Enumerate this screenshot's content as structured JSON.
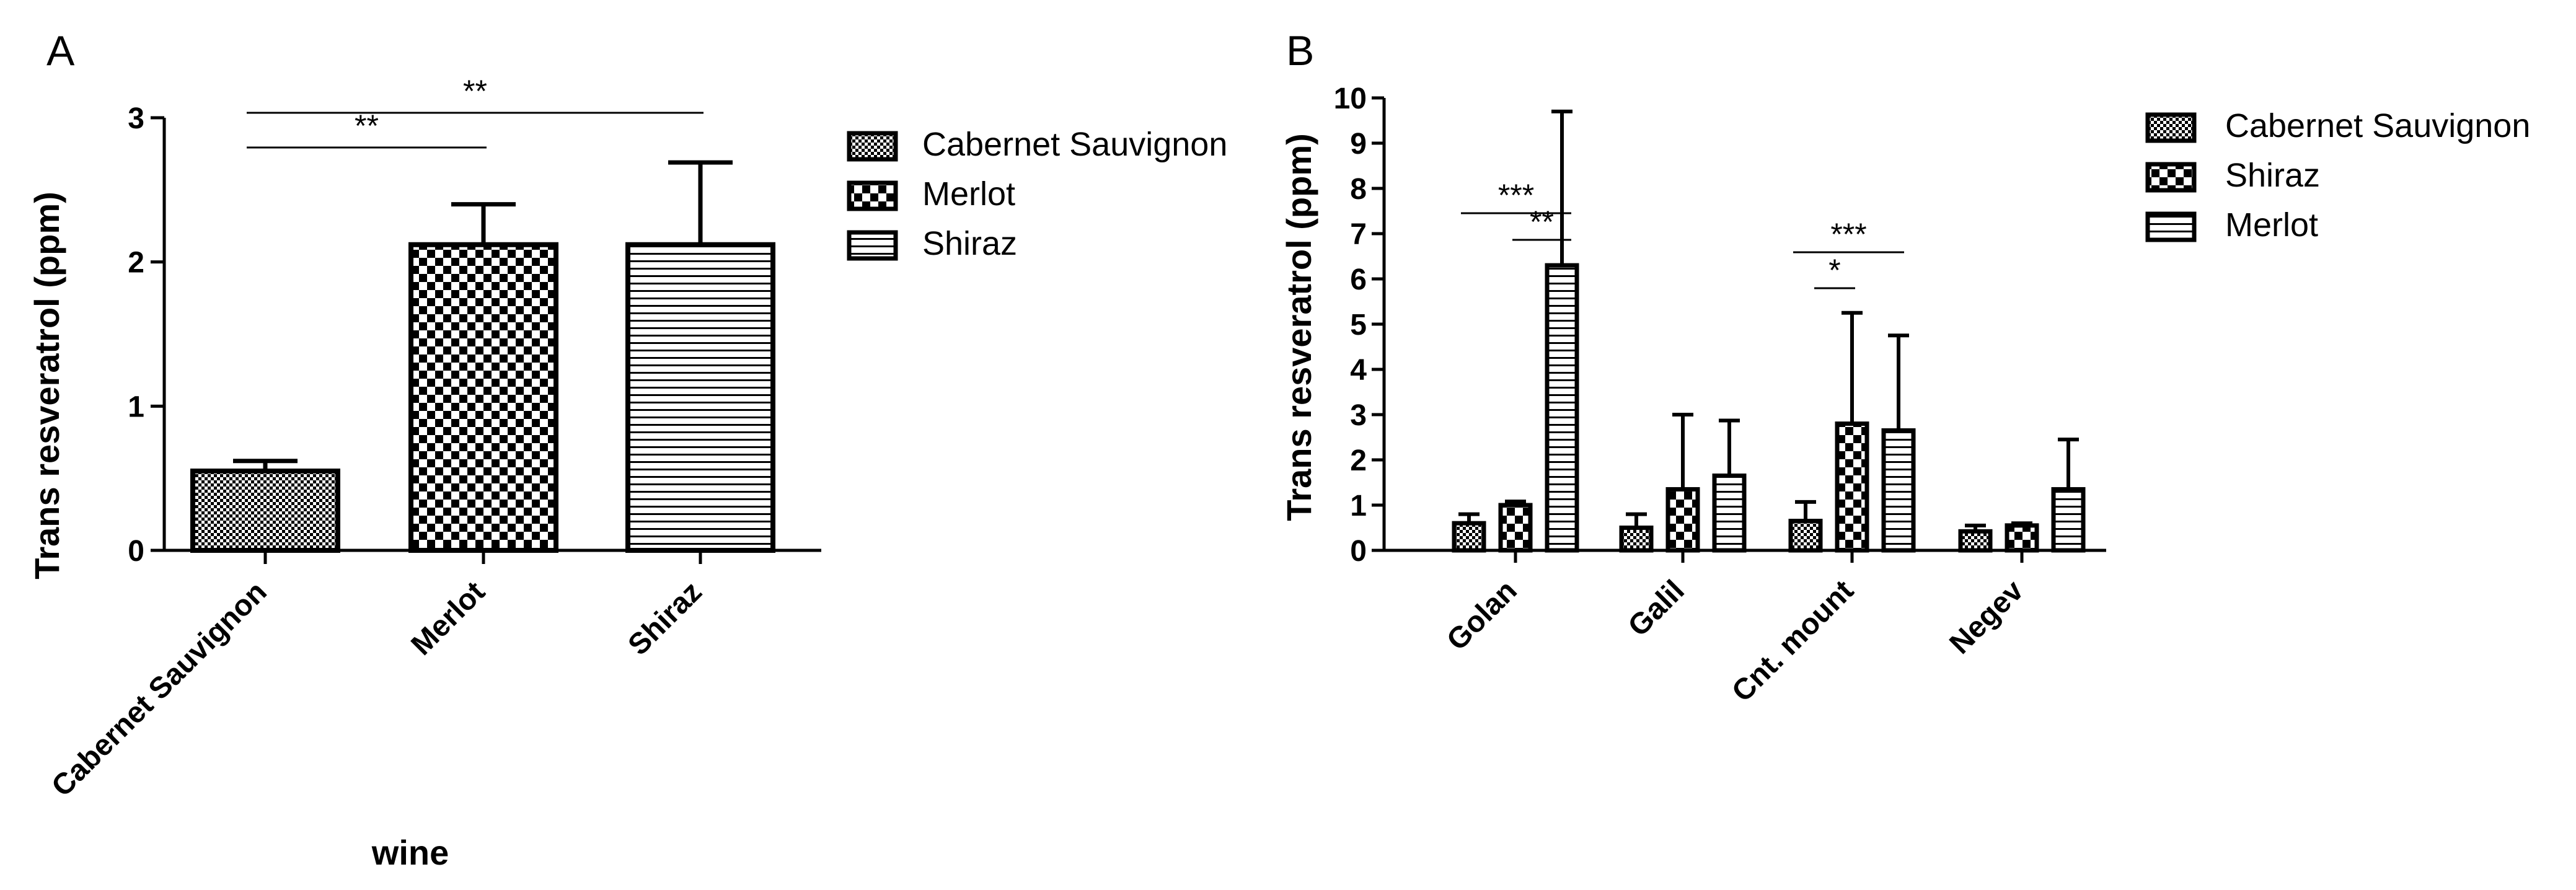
{
  "chart_data": [
    {
      "type": "bar",
      "panel": "A",
      "title": "",
      "xlabel": "wine",
      "ylabel": "Trans resveratrol (ppm)",
      "ylim": [
        0,
        3
      ],
      "yticks": [
        "0",
        "1",
        "2",
        "3"
      ],
      "categories": [
        "Cabernet Sauvignon",
        "Merlot",
        "Shiraz"
      ],
      "values": [
        0.55,
        2.12,
        2.12
      ],
      "errors": [
        0.07,
        0.28,
        0.57
      ],
      "legend": [
        "Cabernet Sauvignon",
        "Merlot",
        "Shiraz"
      ],
      "legend_position": "right",
      "significance": [
        {
          "from": 0,
          "to": 1,
          "label": "**"
        },
        {
          "from": 0,
          "to": 2,
          "label": "**"
        }
      ],
      "grid": false
    },
    {
      "type": "bar",
      "panel": "B",
      "title": "",
      "xlabel": "",
      "ylabel": "Trans resveratrol (ppm)",
      "ylim": [
        0,
        10
      ],
      "yticks": [
        "0",
        "1",
        "2",
        "3",
        "4",
        "5",
        "6",
        "7",
        "8",
        "9",
        "10"
      ],
      "categories": [
        "Golan",
        "Galil",
        "Cnt. mount",
        "Negev"
      ],
      "series": [
        {
          "name": "Cabernet Sauvignon",
          "values": [
            0.6,
            0.5,
            0.65,
            0.42
          ],
          "errors": [
            0.2,
            0.3,
            0.42,
            0.13
          ]
        },
        {
          "name": "Shiraz",
          "values": [
            1.0,
            1.35,
            2.8,
            0.55
          ],
          "errors": [
            0.08,
            1.65,
            2.45,
            0.05
          ]
        },
        {
          "name": "Merlot",
          "values": [
            6.3,
            1.65,
            2.65,
            1.35
          ],
          "errors": [
            3.4,
            1.22,
            2.1,
            1.1
          ]
        }
      ],
      "legend_position": "right",
      "significance": [
        {
          "group": 0,
          "from": 0,
          "to": 2,
          "label": "***"
        },
        {
          "group": 0,
          "from": 1,
          "to": 2,
          "label": "**"
        },
        {
          "group": 2,
          "from": 0,
          "to": 2,
          "label": "***"
        },
        {
          "group": 2,
          "from": 0,
          "to": 1,
          "label": "*"
        }
      ],
      "grid": false
    }
  ]
}
